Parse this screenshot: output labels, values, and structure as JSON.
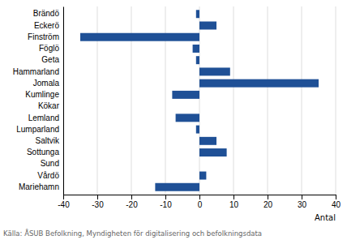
{
  "chart_data": {
    "type": "bar",
    "orientation": "horizontal",
    "categories": [
      "Brändö",
      "Eckerö",
      "Finström",
      "Föglö",
      "Geta",
      "Hammarland",
      "Jomala",
      "Kumlinge",
      "Kökar",
      "Lemland",
      "Lumparland",
      "Saltvik",
      "Sottunga",
      "Sund",
      "Vårdö",
      "Mariehamn"
    ],
    "values": [
      -1,
      5,
      -35,
      -2,
      -1,
      9,
      35,
      -8,
      0,
      -7,
      -1,
      5,
      8,
      0,
      2,
      -13
    ],
    "color": "#1f5096",
    "xlim": [
      -40,
      40
    ],
    "xticks": [
      -40,
      -30,
      -20,
      -10,
      0,
      10,
      20,
      30,
      40
    ],
    "xlabel": "Antal",
    "annotations": [
      "Källa: ÅSUB Befolkning, Myndigheten för digitalisering och befolkningsdata"
    ],
    "grid": true
  }
}
